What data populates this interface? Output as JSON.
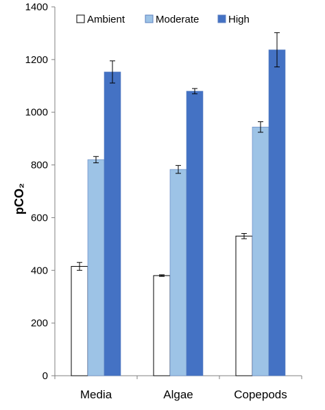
{
  "chart_data": {
    "type": "bar",
    "title": "",
    "xlabel": "",
    "ylabel": "pCO₂",
    "ylim": [
      0,
      1400
    ],
    "yticks": [
      0,
      200,
      400,
      600,
      800,
      1000,
      1200,
      1400
    ],
    "categories": [
      "Media",
      "Algae",
      "Copepods"
    ],
    "legend_position": "top",
    "grid": false,
    "error_bars": true,
    "series": [
      {
        "name": "Ambient",
        "color": "#ffffff",
        "values": [
          415,
          380,
          530
        ],
        "errors": [
          15,
          3,
          10
        ]
      },
      {
        "name": "Moderate",
        "color": "#9dc3e6",
        "values": [
          820,
          783,
          944
        ],
        "errors": [
          12,
          15,
          20
        ]
      },
      {
        "name": "High",
        "color": "#4472c4",
        "values": [
          1153,
          1080,
          1237
        ],
        "errors": [
          42,
          10,
          65
        ]
      }
    ]
  }
}
